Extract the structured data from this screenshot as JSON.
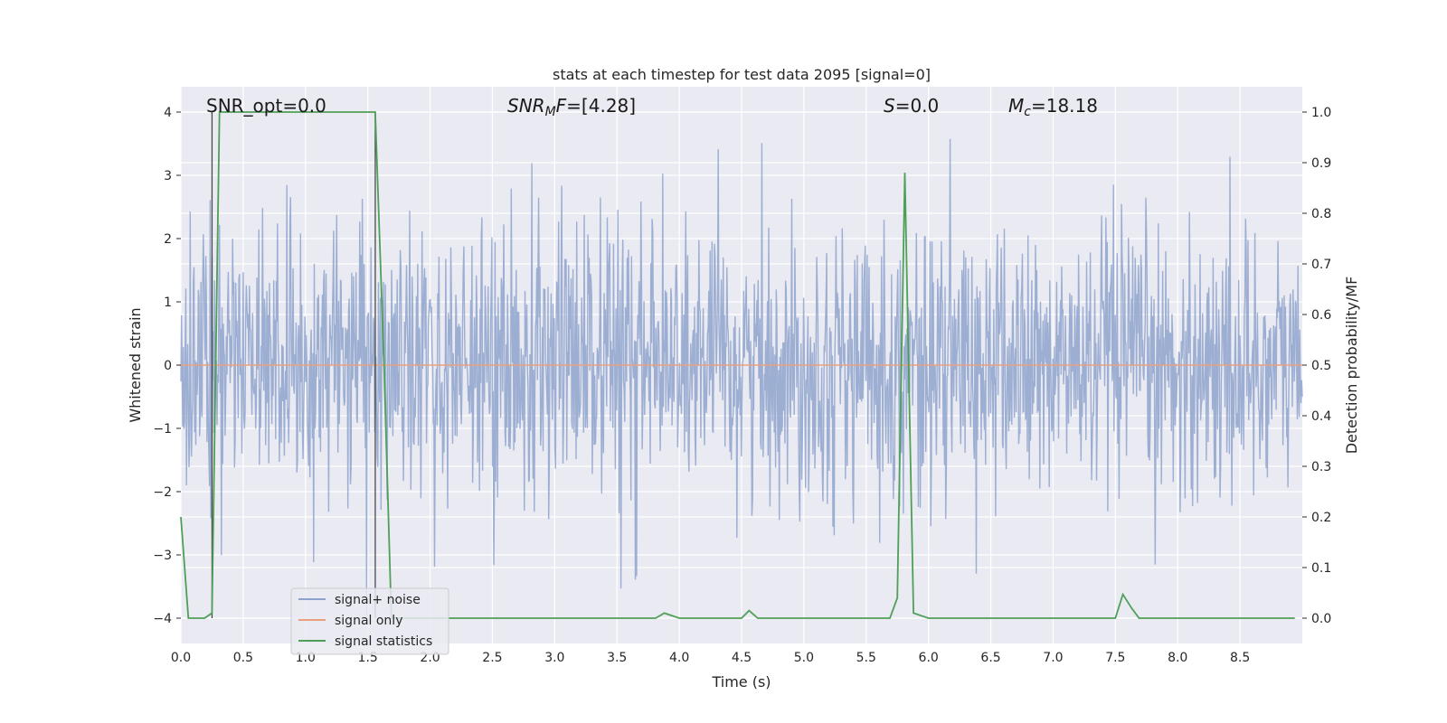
{
  "chart_data": {
    "type": "line",
    "title": "stats at each timestep for test data 2095 [signal=0]",
    "xlabel": "Time (s)",
    "ylabel_left": "Whitened strain",
    "ylabel_right": "Detection probability/MF",
    "xlim": [
      0.0,
      9.0
    ],
    "ylim_left": [
      -4.4,
      4.4
    ],
    "ylim_right": [
      -0.05,
      1.05
    ],
    "x_ticks": [
      "0.0",
      "0.5",
      "1.0",
      "1.5",
      "2.0",
      "2.5",
      "3.0",
      "3.5",
      "4.0",
      "4.5",
      "5.0",
      "5.5",
      "6.0",
      "6.5",
      "7.0",
      "7.5",
      "8.0",
      "8.5"
    ],
    "y_left_ticks": [
      "4",
      "3",
      "2",
      "1",
      "0",
      "−1",
      "−2",
      "−3",
      "−4"
    ],
    "y_right_ticks": [
      "1.0",
      "0.9",
      "0.8",
      "0.7",
      "0.6",
      "0.5",
      "0.4",
      "0.3",
      "0.2",
      "0.1",
      "0.0"
    ],
    "grid": true,
    "legend_position": "lower-left",
    "annotations": {
      "snr_opt": "SNR_opt=0.0",
      "snr_mf": "=[4.28]",
      "snr_mf_symbol": "SNR",
      "snr_mf_sub": "M",
      "snr_mf_suffix": "F",
      "s_symbol": "S",
      "s_value": "=0.0",
      "mc_symbol": "M",
      "mc_sub": "c",
      "mc_value": "=18.18"
    },
    "series": [
      {
        "name": "signal+ noise",
        "color": "#8ea3cc",
        "axis": "left",
        "description_of_values": "whitened noise, approx. Gaussian, peak amplitude near 4 at x=0.25 and x=8.9"
      },
      {
        "name": "signal only",
        "color": "#e8a07f",
        "axis": "left",
        "x": [
          0.0,
          9.0
        ],
        "y": [
          0.0,
          0.0
        ]
      },
      {
        "name": "signal statistics",
        "color": "#4e9f57",
        "axis": "right",
        "x": [
          0.0,
          0.06,
          0.19,
          0.25,
          0.31,
          1.56,
          1.63,
          1.69,
          3.81,
          3.88,
          4.0,
          4.5,
          4.56,
          4.63,
          5.69,
          5.75,
          5.81,
          5.88,
          6.0,
          7.5,
          7.56,
          7.63,
          7.69,
          8.94
        ],
        "y": [
          0.2,
          0.0,
          0.0,
          0.01,
          1.0,
          1.0,
          0.5,
          0.0,
          0.0,
          0.01,
          0.0,
          0.0,
          0.015,
          0.0,
          0.0,
          0.04,
          0.88,
          0.01,
          0.0,
          0.0,
          0.047,
          0.02,
          0.0,
          0.0
        ]
      }
    ]
  },
  "legend": {
    "items": [
      {
        "label": "signal+ noise",
        "color": "#8ea3cc"
      },
      {
        "label": "signal only",
        "color": "#e8a07f"
      },
      {
        "label": "signal statistics",
        "color": "#4e9f57"
      }
    ]
  }
}
